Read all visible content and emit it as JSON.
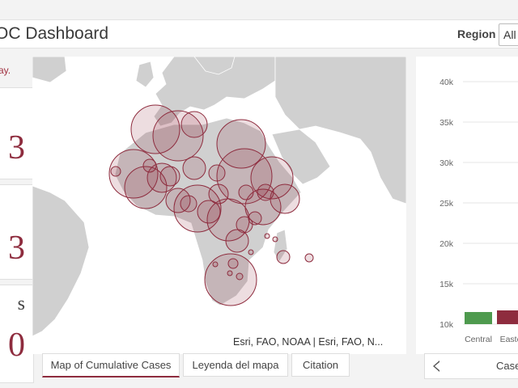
{
  "header": {
    "title": "OC Dashboard",
    "region_label": "Region",
    "region_value": "All"
  },
  "left": {
    "note": "ay.",
    "cards": [
      {
        "value": "3"
      },
      {
        "value": "3"
      },
      {
        "value": "0",
        "label": "s"
      }
    ]
  },
  "map": {
    "attribution": "Esri, FAO, NOAA | Esri, FAO, N...",
    "bubble_color": "#8e2c3e"
  },
  "tabs": [
    {
      "label": "Map of Cumulative Cases",
      "active": true
    },
    {
      "label": "Leyenda del mapa",
      "active": false
    },
    {
      "label": "Citation",
      "active": false
    }
  ],
  "bottom_right": {
    "label": "Case"
  },
  "chart_data": {
    "type": "bar",
    "categories": [
      "Central",
      "Easte"
    ],
    "values": [
      11500,
      11700
    ],
    "colors": [
      "#4e9a4e",
      "#8e2c3e"
    ],
    "ylim": [
      10000,
      40000
    ],
    "yticks": [
      "10k",
      "15k",
      "20k",
      "25k",
      "30k",
      "35k",
      "40k"
    ],
    "grid": true
  }
}
